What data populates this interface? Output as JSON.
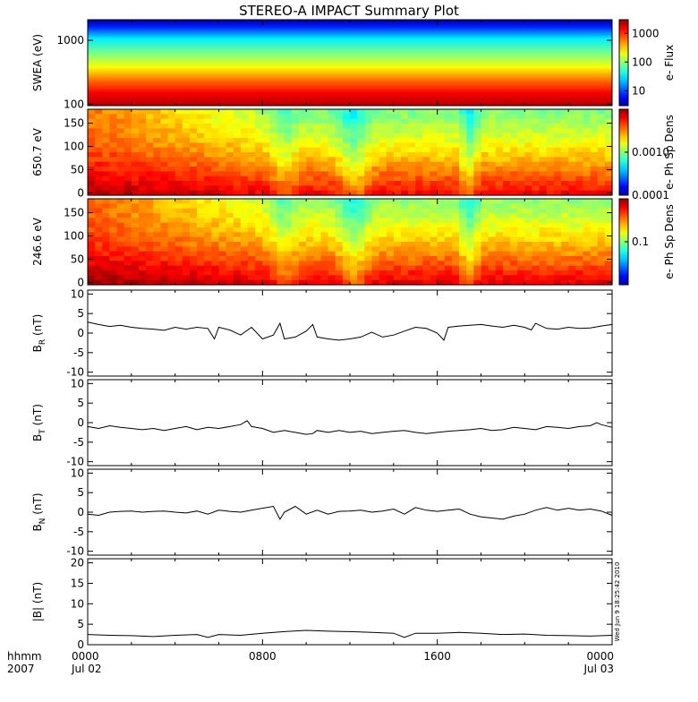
{
  "title": "STEREO-A IMPACT Summary Plot",
  "stamp": "Wed Jun  9 18:25:42 2010",
  "time_axis": {
    "label_top": "hhmm",
    "label_bottom": "2007",
    "ticks": [
      {
        "hours": 0,
        "top": "0000",
        "bottom": "Jul 02"
      },
      {
        "hours": 8,
        "top": "0800",
        "bottom": ""
      },
      {
        "hours": 16,
        "top": "1600",
        "bottom": ""
      },
      {
        "hours": 24,
        "top": "0000",
        "bottom": "Jul 03"
      }
    ],
    "range_hours": [
      0,
      24
    ]
  },
  "chart_data": [
    {
      "type": "heatmap",
      "ylabel": "SWEA (eV)",
      "yscale": "log",
      "ylim": [
        95,
        2100
      ],
      "yticks": [
        {
          "v": 100,
          "label": "100"
        },
        {
          "v": 1000,
          "label": "1000"
        }
      ],
      "colorbar": {
        "label": "e- Flux",
        "scale": "log",
        "range": [
          3,
          3000
        ],
        "ticks": [
          {
            "v": 10,
            "label": "10"
          },
          {
            "v": 100,
            "label": "100"
          },
          {
            "v": 1000,
            "label": "1000"
          }
        ]
      }
    },
    {
      "type": "heatmap",
      "ylabel": "650.7 eV",
      "ylim": [
        -5,
        180
      ],
      "yticks": [
        {
          "v": 0,
          "label": "0"
        },
        {
          "v": 50,
          "label": "50"
        },
        {
          "v": 100,
          "label": "100"
        },
        {
          "v": 150,
          "label": "150"
        }
      ],
      "colorbar": {
        "label": "e- Ph Sp Dens",
        "scale": "log",
        "range": [
          0.0001,
          0.01
        ],
        "ticks": [
          {
            "v": 0.0001,
            "label": "0.0001"
          },
          {
            "v": 0.001,
            "label": "0.0010"
          }
        ]
      }
    },
    {
      "type": "heatmap",
      "ylabel": "246.6 eV",
      "ylim": [
        -5,
        180
      ],
      "yticks": [
        {
          "v": 0,
          "label": "0"
        },
        {
          "v": 50,
          "label": "50"
        },
        {
          "v": 100,
          "label": "100"
        },
        {
          "v": 150,
          "label": "150"
        }
      ],
      "colorbar": {
        "label": "e- Ph Sp Dens",
        "scale": "log",
        "range": [
          0.01,
          1
        ],
        "ticks": [
          {
            "v": 0.1,
            "label": "0.1"
          }
        ]
      }
    },
    {
      "type": "line",
      "ylabel_main": "B",
      "ylabel_sub": "R",
      "ylabel_unit": "(nT)",
      "ylim": [
        -11,
        11
      ],
      "yticks": [
        {
          "v": -10,
          "label": "-10"
        },
        {
          "v": -5,
          "label": "-5"
        },
        {
          "v": 0,
          "label": "0"
        },
        {
          "v": 5,
          "label": "5"
        },
        {
          "v": 10,
          "label": "10"
        }
      ],
      "x_hours": [
        0,
        0.5,
        1,
        1.5,
        2,
        2.5,
        3,
        3.5,
        4,
        4.5,
        5,
        5.5,
        5.8,
        6,
        6.5,
        7,
        7.5,
        8,
        8.5,
        8.8,
        9,
        9.5,
        10,
        10.3,
        10.5,
        11,
        11.5,
        12,
        12.5,
        13,
        13.5,
        14,
        14.5,
        15,
        15.5,
        16,
        16.3,
        16.5,
        17,
        17.5,
        18,
        18.5,
        19,
        19.5,
        20,
        20.3,
        20.5,
        21,
        21.5,
        22,
        22.5,
        23,
        23.5,
        24
      ],
      "values": [
        2.8,
        2.2,
        1.7,
        2,
        1.5,
        1.2,
        1,
        0.7,
        1.5,
        1,
        1.5,
        1.2,
        -1.5,
        1.5,
        0.8,
        -0.5,
        1.5,
        -1.5,
        -0.5,
        2.5,
        -1.5,
        -1,
        0.5,
        2.2,
        -1,
        -1.5,
        -1.8,
        -1.5,
        -1,
        0.2,
        -1,
        -0.5,
        0.5,
        1.5,
        1.2,
        0,
        -1.8,
        1.5,
        1.8,
        2,
        2.2,
        1.8,
        1.5,
        2,
        1.5,
        0.8,
        2.5,
        1.2,
        1,
        1.5,
        1.2,
        1.3,
        1.8,
        2.2
      ]
    },
    {
      "type": "line",
      "ylabel_main": "B",
      "ylabel_sub": "T",
      "ylabel_unit": "(nT)",
      "ylim": [
        -11,
        11
      ],
      "yticks": [
        {
          "v": -10,
          "label": "-10"
        },
        {
          "v": -5,
          "label": "-5"
        },
        {
          "v": 0,
          "label": "0"
        },
        {
          "v": 5,
          "label": "5"
        },
        {
          "v": 10,
          "label": "10"
        }
      ],
      "x_hours": [
        0,
        0.5,
        1,
        1.5,
        2,
        2.5,
        3,
        3.5,
        4,
        4.5,
        5,
        5.5,
        6,
        6.5,
        7,
        7.3,
        7.5,
        8,
        8.5,
        9,
        9.5,
        10,
        10.3,
        10.5,
        11,
        11.5,
        12,
        12.5,
        13,
        13.5,
        14,
        14.5,
        15,
        15.5,
        16,
        16.5,
        17,
        17.5,
        18,
        18.5,
        19,
        19.5,
        20,
        20.5,
        21,
        21.5,
        22,
        22.5,
        23,
        23.3,
        23.5,
        24
      ],
      "values": [
        -1,
        -1.5,
        -0.8,
        -1.2,
        -1.5,
        -1.8,
        -1.5,
        -2,
        -1.5,
        -1,
        -1.8,
        -1.2,
        -1.5,
        -1,
        -0.5,
        0.5,
        -1,
        -1.5,
        -2.5,
        -2,
        -2.5,
        -3,
        -2.8,
        -2,
        -2.5,
        -2,
        -2.5,
        -2.2,
        -2.8,
        -2.5,
        -2.2,
        -2,
        -2.5,
        -2.8,
        -2.5,
        -2.2,
        -2,
        -1.8,
        -1.5,
        -2,
        -1.8,
        -1.2,
        -1.5,
        -1.8,
        -1,
        -1.2,
        -1.5,
        -1,
        -0.8,
        0,
        -0.5,
        -1.2
      ]
    },
    {
      "type": "line",
      "ylabel_main": "B",
      "ylabel_sub": "N",
      "ylabel_unit": "(nT)",
      "ylim": [
        -11,
        11
      ],
      "yticks": [
        {
          "v": -10,
          "label": "-10"
        },
        {
          "v": -5,
          "label": "-5"
        },
        {
          "v": 0,
          "label": "0"
        },
        {
          "v": 5,
          "label": "5"
        },
        {
          "v": 10,
          "label": "10"
        }
      ],
      "x_hours": [
        0,
        0.5,
        1,
        1.5,
        2,
        2.5,
        3,
        3.5,
        4,
        4.5,
        5,
        5.5,
        6,
        6.5,
        7,
        7.5,
        8,
        8.5,
        8.8,
        9,
        9.5,
        10,
        10.5,
        11,
        11.5,
        12,
        12.5,
        13,
        13.5,
        14,
        14.5,
        15,
        15.5,
        16,
        16.5,
        17,
        17.5,
        18,
        18.5,
        19,
        19.5,
        20,
        20.5,
        21,
        21.5,
        22,
        22.5,
        23,
        23.5,
        24
      ],
      "values": [
        -0.5,
        -0.8,
        0,
        0.2,
        0.3,
        0,
        0.2,
        0.3,
        0,
        -0.2,
        0.3,
        -0.5,
        0.5,
        0.2,
        0,
        0.5,
        1,
        1.5,
        -1.8,
        0,
        1.5,
        -0.5,
        0.5,
        -0.5,
        0.2,
        0.3,
        0.5,
        0,
        0.3,
        0.8,
        -0.5,
        1.2,
        0.5,
        0.2,
        0.5,
        0.8,
        -0.5,
        -1.2,
        -1.5,
        -1.8,
        -1,
        -0.5,
        0.5,
        1.2,
        0.5,
        1,
        0.5,
        0.8,
        0.3,
        -0.8
      ]
    },
    {
      "type": "line",
      "ylabel_main": "|B|",
      "ylabel_unit": "(nT)",
      "ylim": [
        0,
        21
      ],
      "yticks": [
        {
          "v": 0,
          "label": "0"
        },
        {
          "v": 5,
          "label": "5"
        },
        {
          "v": 10,
          "label": "10"
        },
        {
          "v": 15,
          "label": "15"
        },
        {
          "v": 20,
          "label": "20"
        }
      ],
      "x_hours": [
        0,
        1,
        2,
        3,
        4,
        5,
        5.5,
        6,
        7,
        8,
        9,
        10,
        11,
        12,
        13,
        14,
        14.5,
        15,
        16,
        17,
        18,
        19,
        20,
        21,
        22,
        23,
        24
      ],
      "values": [
        2.5,
        2.3,
        2.2,
        2,
        2.3,
        2.5,
        1.8,
        2.5,
        2.3,
        2.8,
        3.2,
        3.5,
        3.3,
        3.2,
        3,
        2.8,
        1.8,
        2.8,
        2.8,
        3,
        2.8,
        2.5,
        2.6,
        2.3,
        2.2,
        2.1,
        2.3
      ]
    }
  ]
}
